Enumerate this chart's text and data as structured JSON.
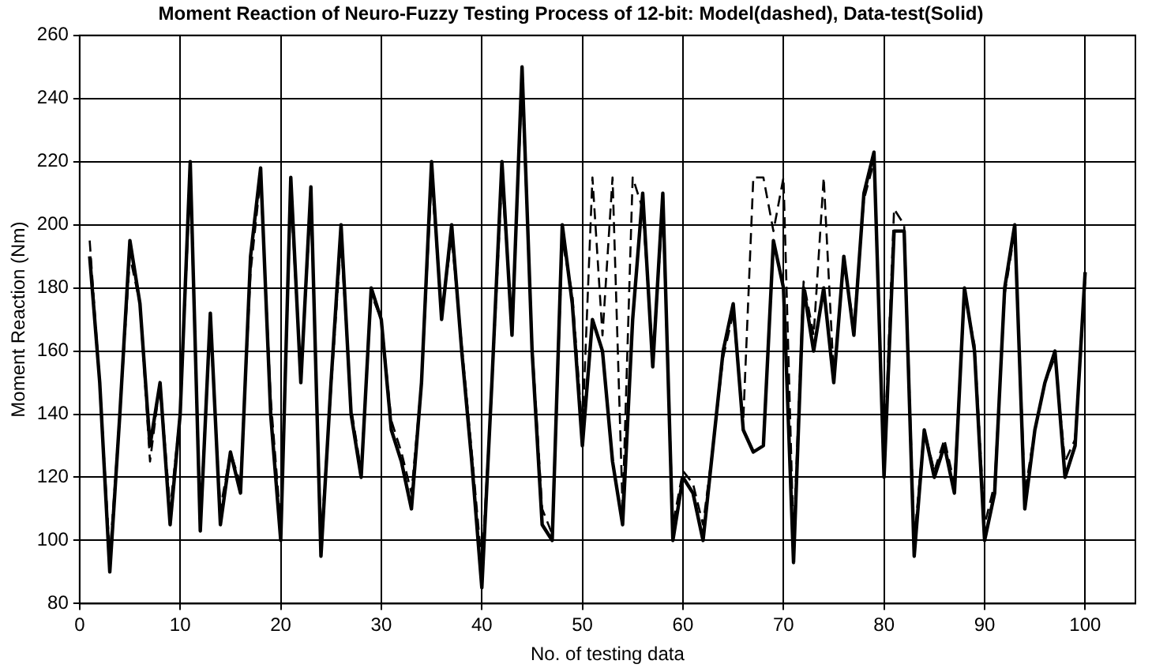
{
  "chart_data": {
    "type": "line",
    "title": "Moment Reaction of Neuro-Fuzzy Testing Process of 12-bit: Model(dashed), Data-test(Solid)",
    "xlabel": "No. of testing data",
    "ylabel": "Moment Reaction (Nm)",
    "x": [
      1,
      2,
      3,
      4,
      5,
      6,
      7,
      8,
      9,
      10,
      11,
      12,
      13,
      14,
      15,
      16,
      17,
      18,
      19,
      20,
      21,
      22,
      23,
      24,
      25,
      26,
      27,
      28,
      29,
      30,
      31,
      32,
      33,
      34,
      35,
      36,
      37,
      38,
      39,
      40,
      41,
      42,
      43,
      44,
      45,
      46,
      47,
      48,
      49,
      50,
      51,
      52,
      53,
      54,
      55,
      56,
      57,
      58,
      59,
      60,
      61,
      62,
      63,
      64,
      65,
      66,
      67,
      68,
      69,
      70,
      71,
      72,
      73,
      74,
      75,
      76,
      77,
      78,
      79,
      80,
      81,
      82,
      83,
      84,
      85,
      86,
      87,
      88,
      89,
      90,
      91,
      92,
      93,
      94,
      95,
      96,
      97,
      98,
      99,
      100
    ],
    "series": [
      {
        "color": "#000000",
        "line_style": "dashed",
        "values": [
          195,
          150,
          95,
          140,
          190,
          175,
          125,
          150,
          110,
          140,
          215,
          108,
          168,
          110,
          128,
          118,
          185,
          215,
          145,
          105,
          210,
          152,
          208,
          100,
          148,
          195,
          142,
          122,
          178,
          170,
          138,
          128,
          115,
          150,
          215,
          172,
          196,
          162,
          128,
          92,
          148,
          215,
          168,
          245,
          162,
          110,
          102,
          195,
          178,
          135,
          215,
          165,
          215,
          110,
          215,
          205,
          158,
          205,
          105,
          122,
          118,
          105,
          130,
          158,
          172,
          138,
          215,
          215,
          198,
          215,
          100,
          182,
          165,
          215,
          152,
          188,
          168,
          208,
          220,
          125,
          205,
          200,
          100,
          135,
          122,
          132,
          118,
          178,
          162,
          105,
          118,
          178,
          198,
          115,
          135,
          150,
          158,
          125,
          132,
          182
        ]
      },
      {
        "color": "#000000",
        "line_style": "solid",
        "values": [
          190,
          150,
          90,
          140,
          195,
          175,
          130,
          150,
          105,
          140,
          220,
          103,
          172,
          105,
          128,
          115,
          190,
          218,
          140,
          100,
          215,
          150,
          212,
          95,
          150,
          200,
          140,
          120,
          180,
          170,
          135,
          125,
          110,
          150,
          220,
          170,
          200,
          160,
          125,
          85,
          150,
          220,
          165,
          250,
          160,
          105,
          100,
          200,
          175,
          130,
          170,
          160,
          125,
          105,
          170,
          210,
          155,
          210,
          100,
          120,
          115,
          100,
          130,
          160,
          175,
          135,
          128,
          130,
          195,
          180,
          93,
          180,
          160,
          180,
          150,
          190,
          165,
          210,
          223,
          120,
          198,
          198,
          95,
          135,
          120,
          130,
          115,
          180,
          160,
          100,
          115,
          180,
          200,
          110,
          135,
          150,
          160,
          120,
          130,
          185
        ]
      }
    ],
    "xlim": [
      0,
      105
    ],
    "xticks": [
      0,
      10,
      20,
      30,
      40,
      50,
      60,
      70,
      80,
      90,
      100
    ],
    "ylim": [
      80,
      260
    ],
    "yticks": [
      80,
      100,
      120,
      140,
      160,
      180,
      200,
      220,
      240,
      260
    ],
    "grid": true,
    "legend": false,
    "marker": "none"
  }
}
